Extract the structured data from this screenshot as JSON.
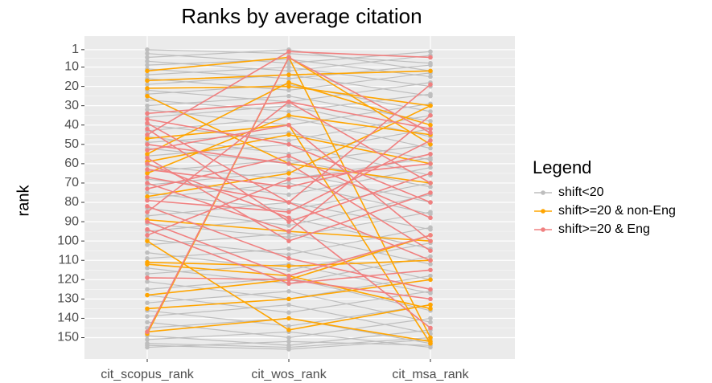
{
  "chart_data": {
    "type": "parallel",
    "title": "Ranks by average citation",
    "y_label": "rank",
    "categories": [
      "cit_scopus_rank",
      "cit_wos_rank",
      "cit_msa_rank"
    ],
    "ylim": [
      -6,
      161
    ],
    "y_reversed": true,
    "yticks": [
      1,
      10,
      20,
      30,
      40,
      50,
      60,
      70,
      80,
      90,
      100,
      110,
      120,
      130,
      140,
      150
    ],
    "grid": true,
    "legend_title": "Legend",
    "legend_position": "right",
    "series": [
      {
        "name": "shift<20",
        "color": "#bebebe",
        "lines": [
          [
            1,
            3,
            8
          ],
          [
            3,
            8,
            2
          ],
          [
            5,
            1,
            12
          ],
          [
            7,
            12,
            4
          ],
          [
            9,
            6,
            15
          ],
          [
            11,
            16,
            9
          ],
          [
            14,
            10,
            20
          ],
          [
            16,
            22,
            13
          ],
          [
            19,
            14,
            25
          ],
          [
            22,
            28,
            18
          ],
          [
            24,
            19,
            33
          ],
          [
            27,
            33,
            24
          ],
          [
            30,
            25,
            38
          ],
          [
            32,
            40,
            29
          ],
          [
            36,
            30,
            46
          ],
          [
            40,
            48,
            35
          ],
          [
            43,
            36,
            52
          ],
          [
            46,
            55,
            42
          ],
          [
            49,
            44,
            58
          ],
          [
            52,
            60,
            50
          ],
          [
            56,
            50,
            66
          ],
          [
            61,
            68,
            57
          ],
          [
            64,
            58,
            72
          ],
          [
            68,
            76,
            62
          ],
          [
            71,
            64,
            80
          ],
          [
            75,
            84,
            70
          ],
          [
            78,
            70,
            86
          ],
          [
            83,
            92,
            76
          ],
          [
            87,
            80,
            94
          ],
          [
            91,
            98,
            85
          ],
          [
            95,
            88,
            104
          ],
          [
            99,
            107,
            93
          ],
          [
            102,
            96,
            112
          ],
          [
            106,
            115,
            101
          ],
          [
            109,
            104,
            120
          ],
          [
            114,
            122,
            108
          ],
          [
            117,
            112,
            127
          ],
          [
            121,
            130,
            118
          ],
          [
            125,
            119,
            136
          ],
          [
            128,
            137,
            126
          ],
          [
            132,
            126,
            142
          ],
          [
            136,
            144,
            133
          ],
          [
            139,
            133,
            148
          ],
          [
            142,
            150,
            140
          ],
          [
            145,
            140,
            153
          ],
          [
            149,
            154,
            146
          ],
          [
            151,
            147,
            155
          ],
          [
            153,
            155,
            150
          ],
          [
            155,
            152,
            154
          ],
          [
            154,
            156,
            151
          ]
        ]
      },
      {
        "name": "shift>=20 & non-Eng",
        "color": "#ffa500",
        "lines": [
          [
            12,
            5,
            50
          ],
          [
            17,
            14,
            12
          ],
          [
            21,
            20,
            30
          ],
          [
            47,
            40,
            153
          ],
          [
            55,
            18,
            40
          ],
          [
            59,
            45,
            60
          ],
          [
            89,
            95,
            100
          ],
          [
            111,
            113,
            110
          ],
          [
            112,
            118,
            135
          ],
          [
            128,
            120,
            97
          ],
          [
            135,
            130,
            120
          ],
          [
            147,
            140,
            152
          ],
          [
            148,
            5,
            150
          ],
          [
            100,
            146,
            133
          ],
          [
            25,
            60,
            70
          ],
          [
            65,
            35,
            45
          ],
          [
            77,
            65,
            30
          ]
        ]
      },
      {
        "name": "shift>=20 & Eng",
        "color": "#f08080",
        "lines": [
          [
            34,
            28,
            42
          ],
          [
            37,
            50,
            80
          ],
          [
            39,
            80,
            19
          ],
          [
            42,
            90,
            65
          ],
          [
            45,
            2,
            5
          ],
          [
            50,
            60,
            105
          ],
          [
            57,
            100,
            75
          ],
          [
            63,
            72,
            55
          ],
          [
            67,
            80,
            110
          ],
          [
            70,
            95,
            35
          ],
          [
            73,
            56,
            88
          ],
          [
            79,
            85,
            48
          ],
          [
            82,
            109,
            125
          ],
          [
            85,
            28,
            70
          ],
          [
            90,
            118,
            97
          ],
          [
            94,
            122,
            115
          ],
          [
            97,
            68,
            60
          ],
          [
            119,
            120,
            130
          ],
          [
            147,
            5,
            44
          ],
          [
            53,
            40,
            100
          ],
          [
            60,
            88,
            145
          ]
        ]
      }
    ]
  }
}
